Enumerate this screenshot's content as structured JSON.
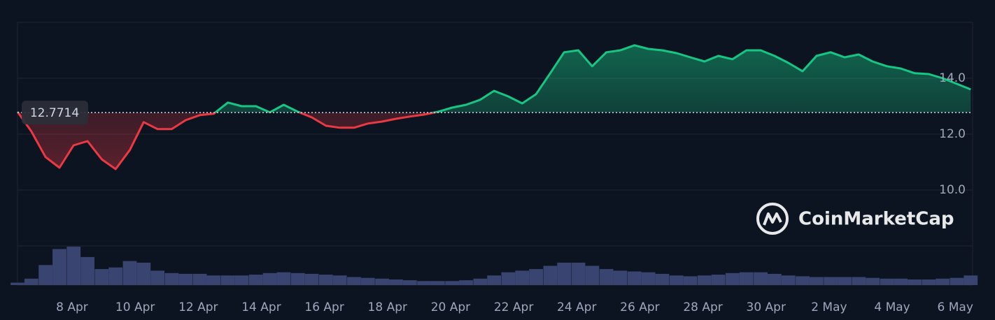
{
  "chart_data": {
    "type": "line",
    "baseline": 12.7714,
    "up_color": "#16c784",
    "down_color": "#ea3943",
    "watermark": "CoinMarketCap",
    "xlim": [
      97.27,
      127.55
    ],
    "xticks": [
      {
        "value": 99,
        "label": "8 Apr"
      },
      {
        "value": 101,
        "label": "10 Apr"
      },
      {
        "value": 103,
        "label": "12 Apr"
      },
      {
        "value": 105,
        "label": "14 Apr"
      },
      {
        "value": 107,
        "label": "16 Apr"
      },
      {
        "value": 109,
        "label": "18 Apr"
      },
      {
        "value": 111,
        "label": "20 Apr"
      },
      {
        "value": 113,
        "label": "22 Apr"
      },
      {
        "value": 115,
        "label": "24 Apr"
      },
      {
        "value": 117,
        "label": "26 Apr"
      },
      {
        "value": 119,
        "label": "28 Apr"
      },
      {
        "value": 121,
        "label": "30 Apr"
      },
      {
        "value": 123,
        "label": "2 May"
      },
      {
        "value": 125,
        "label": "4 May"
      },
      {
        "value": 127,
        "label": "6 May"
      }
    ],
    "ylim": [
      8,
      16
    ],
    "yticks": [
      {
        "value": 10,
        "label": "10.0"
      },
      {
        "value": 12,
        "label": "12.0"
      },
      {
        "value": 14,
        "label": "14.0"
      }
    ],
    "grid": true,
    "x": [
      97.27,
      97.71,
      98.16,
      98.6,
      99.05,
      99.49,
      99.94,
      100.38,
      100.83,
      101.27,
      101.71,
      102.16,
      102.6,
      103.05,
      103.49,
      103.94,
      104.38,
      104.83,
      105.27,
      105.71,
      106.16,
      106.6,
      107.05,
      107.49,
      107.94,
      108.38,
      108.83,
      109.27,
      109.71,
      110.16,
      110.6,
      111.05,
      111.49,
      111.94,
      112.38,
      112.83,
      113.27,
      113.71,
      114.16,
      114.6,
      115.05,
      115.49,
      115.94,
      116.38,
      116.83,
      117.27,
      117.71,
      118.16,
      118.6,
      119.05,
      119.49,
      119.94,
      120.38,
      120.83,
      121.27,
      121.71,
      122.16,
      122.6,
      123.05,
      123.49,
      123.94,
      124.38,
      124.83,
      125.27,
      125.71,
      126.16,
      126.6,
      127.05,
      127.49
    ],
    "values": [
      12.8,
      12.1,
      11.18,
      10.8,
      11.6,
      11.75,
      11.1,
      10.75,
      11.43,
      12.43,
      12.18,
      12.18,
      12.5,
      12.68,
      12.73,
      13.13,
      13.0,
      13.0,
      12.78,
      13.05,
      12.8,
      12.6,
      12.3,
      12.23,
      12.23,
      12.38,
      12.45,
      12.55,
      12.63,
      12.7,
      12.8,
      12.95,
      13.05,
      13.23,
      13.55,
      13.35,
      13.1,
      13.43,
      14.18,
      14.93,
      15.0,
      14.43,
      14.93,
      15.0,
      15.18,
      15.05,
      15.0,
      14.9,
      14.75,
      14.6,
      14.8,
      14.68,
      15.0,
      15.0,
      14.8,
      14.55,
      14.25,
      14.8,
      14.93,
      14.75,
      14.85,
      14.6,
      14.43,
      14.35,
      14.18,
      14.15,
      14.0,
      13.8,
      13.6
    ],
    "volume": [
      3,
      8,
      25,
      45,
      48,
      35,
      20,
      22,
      30,
      28,
      18,
      15,
      14,
      14,
      12,
      12,
      12,
      13,
      15,
      16,
      15,
      14,
      13,
      12,
      10,
      9,
      8,
      7,
      6,
      5,
      5,
      5,
      6,
      8,
      12,
      16,
      18,
      20,
      24,
      28,
      28,
      24,
      20,
      18,
      17,
      16,
      14,
      12,
      11,
      12,
      13,
      15,
      16,
      16,
      14,
      12,
      11,
      10,
      10,
      10,
      10,
      9,
      8,
      8,
      7,
      7,
      8,
      9,
      12
    ],
    "volume_color": "#3a4470"
  }
}
